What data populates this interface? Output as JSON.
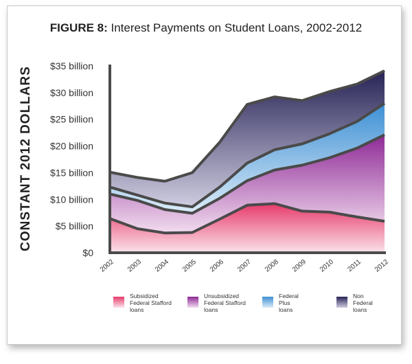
{
  "title_prefix": "FIGURE 8:",
  "title_text": " Interest Payments on Student Loans, 2002-2012",
  "chart_data": {
    "type": "area",
    "stacked": true,
    "title": "FIGURE 8: Interest Payments on Student Loans, 2002-2012",
    "ylabel": "CONSTANT 2012 DOLLARS",
    "xlabel": "",
    "x": [
      "2002",
      "2003",
      "2004",
      "2005",
      "2006",
      "2007",
      "2008",
      "2009",
      "2010",
      "2011",
      "2012"
    ],
    "ylim": [
      0,
      35
    ],
    "yticks": [
      0,
      5,
      10,
      15,
      20,
      25,
      30,
      35
    ],
    "ytick_labels": [
      "$0",
      "$5 billion",
      "$10 billion",
      "$15 billion",
      "$20 billion",
      "$25 billion",
      "$30 billion",
      "$35 billion"
    ],
    "grid": false,
    "legend_position": "bottom",
    "series": [
      {
        "name": "Subsidized Federal Stafford loans",
        "values": [
          6.4,
          4.5,
          3.7,
          3.8,
          6.3,
          8.9,
          9.2,
          7.8,
          7.6,
          6.7,
          5.9
        ],
        "color_top": "#e63b6b",
        "color_bottom": "#fbe3ea"
      },
      {
        "name": "Unsubsidized Federal Stafford loans",
        "values": [
          4.6,
          5.3,
          4.4,
          3.6,
          3.9,
          4.6,
          6.3,
          8.6,
          10.2,
          12.9,
          16.2
        ],
        "color_top": "#8e2a96",
        "color_bottom": "#f2dcef"
      },
      {
        "name": "Federal Plus loans",
        "values": [
          1.3,
          1.0,
          1.2,
          1.2,
          2.1,
          3.3,
          3.8,
          4.0,
          4.5,
          5.0,
          5.9
        ],
        "color_top": "#3d8fd4",
        "color_bottom": "#dcecf8"
      },
      {
        "name": "Non Federal loans",
        "values": [
          2.8,
          3.3,
          4.1,
          6.4,
          8.4,
          11.0,
          9.9,
          8.1,
          7.9,
          7.0,
          6.1
        ],
        "color_top": "#272356",
        "color_bottom": "#cfcde0"
      }
    ]
  },
  "legend": [
    {
      "lines": [
        "Subsidized",
        "Federal Stafford",
        "loans"
      ]
    },
    {
      "lines": [
        "Unsubsidized",
        "Federal Stafford",
        "loans"
      ]
    },
    {
      "lines": [
        "Federal",
        "Plus",
        "loans"
      ]
    },
    {
      "lines": [
        "Non",
        "Federal",
        "loans"
      ]
    }
  ]
}
